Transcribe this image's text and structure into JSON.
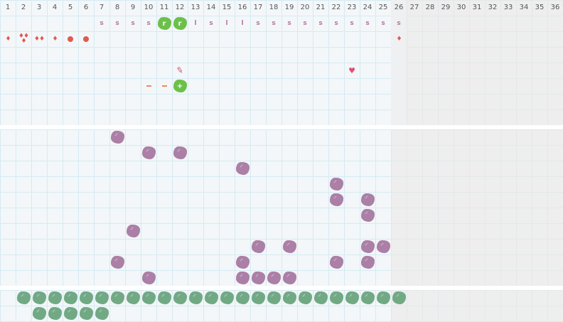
{
  "days": [
    "1",
    "2",
    "3",
    "4",
    "5",
    "6",
    "7",
    "8",
    "9",
    "10",
    "11",
    "12",
    "13",
    "14",
    "15",
    "16",
    "17",
    "18",
    "19",
    "20",
    "21",
    "22",
    "23",
    "24",
    "25",
    "26",
    "27",
    "28",
    "29",
    "30",
    "31",
    "32",
    "33",
    "34",
    "35",
    "36"
  ],
  "today": 26,
  "colors": {
    "purple": "#ab7fa6",
    "green": "#72a985",
    "bright_green": "#6cc04a",
    "red": "#e05a52",
    "grid_line": "#d6eaf3"
  },
  "section1": {
    "marks": [
      {
        "row": 0,
        "col": 7,
        "type": "letter",
        "text": "s"
      },
      {
        "row": 0,
        "col": 8,
        "type": "letter",
        "text": "s"
      },
      {
        "row": 0,
        "col": 9,
        "type": "letter",
        "text": "s"
      },
      {
        "row": 0,
        "col": 10,
        "type": "letter",
        "text": "s"
      },
      {
        "row": 0,
        "col": 11,
        "type": "bright-blob",
        "text": "r"
      },
      {
        "row": 0,
        "col": 12,
        "type": "bright-blob",
        "text": "r"
      },
      {
        "row": 0,
        "col": 13,
        "type": "letter",
        "text": "l"
      },
      {
        "row": 0,
        "col": 14,
        "type": "letter",
        "text": "s"
      },
      {
        "row": 0,
        "col": 15,
        "type": "letter",
        "text": "l"
      },
      {
        "row": 0,
        "col": 16,
        "type": "letter",
        "text": "l"
      },
      {
        "row": 0,
        "col": 17,
        "type": "letter",
        "text": "s"
      },
      {
        "row": 0,
        "col": 18,
        "type": "letter",
        "text": "s"
      },
      {
        "row": 0,
        "col": 19,
        "type": "letter",
        "text": "s"
      },
      {
        "row": 0,
        "col": 20,
        "type": "letter",
        "text": "s"
      },
      {
        "row": 0,
        "col": 21,
        "type": "letter",
        "text": "s"
      },
      {
        "row": 0,
        "col": 22,
        "type": "letter",
        "text": "s"
      },
      {
        "row": 0,
        "col": 23,
        "type": "letter",
        "text": "s"
      },
      {
        "row": 0,
        "col": 24,
        "type": "letter",
        "text": "s"
      },
      {
        "row": 0,
        "col": 25,
        "type": "letter",
        "text": "s"
      },
      {
        "row": 0,
        "col": 26,
        "type": "letter",
        "text": "s"
      },
      {
        "row": 1,
        "col": 1,
        "type": "drops",
        "count": 1
      },
      {
        "row": 1,
        "col": 2,
        "type": "drops",
        "count": 3
      },
      {
        "row": 1,
        "col": 3,
        "type": "drops",
        "count": 2
      },
      {
        "row": 1,
        "col": 4,
        "type": "drops",
        "count": 1
      },
      {
        "row": 1,
        "col": 5,
        "type": "dot"
      },
      {
        "row": 1,
        "col": 6,
        "type": "dot"
      },
      {
        "row": 1,
        "col": 26,
        "type": "drops",
        "count": 1
      },
      {
        "row": 3,
        "col": 12,
        "type": "pen-icon"
      },
      {
        "row": 3,
        "col": 23,
        "type": "heart-icon"
      },
      {
        "row": 4,
        "col": 10,
        "type": "dash"
      },
      {
        "row": 4,
        "col": 11,
        "type": "dash"
      },
      {
        "row": 4,
        "col": 12,
        "type": "bright-blob",
        "text": "+"
      }
    ]
  },
  "section2": {
    "cells": [
      [
        0,
        8
      ],
      [
        1,
        10
      ],
      [
        1,
        12
      ],
      [
        2,
        16
      ],
      [
        3,
        22
      ],
      [
        4,
        22
      ],
      [
        4,
        24
      ],
      [
        5,
        24
      ],
      [
        6,
        9
      ],
      [
        7,
        17
      ],
      [
        7,
        19
      ],
      [
        7,
        24
      ],
      [
        7,
        25
      ],
      [
        8,
        8
      ],
      [
        8,
        16
      ],
      [
        8,
        22
      ],
      [
        8,
        24
      ],
      [
        9,
        10
      ],
      [
        9,
        16
      ],
      [
        9,
        17
      ],
      [
        9,
        18
      ],
      [
        9,
        19
      ]
    ]
  },
  "section3": {
    "rows": [
      {
        "from": 2,
        "to": 26
      },
      {
        "from": 3,
        "to": 7
      }
    ]
  }
}
